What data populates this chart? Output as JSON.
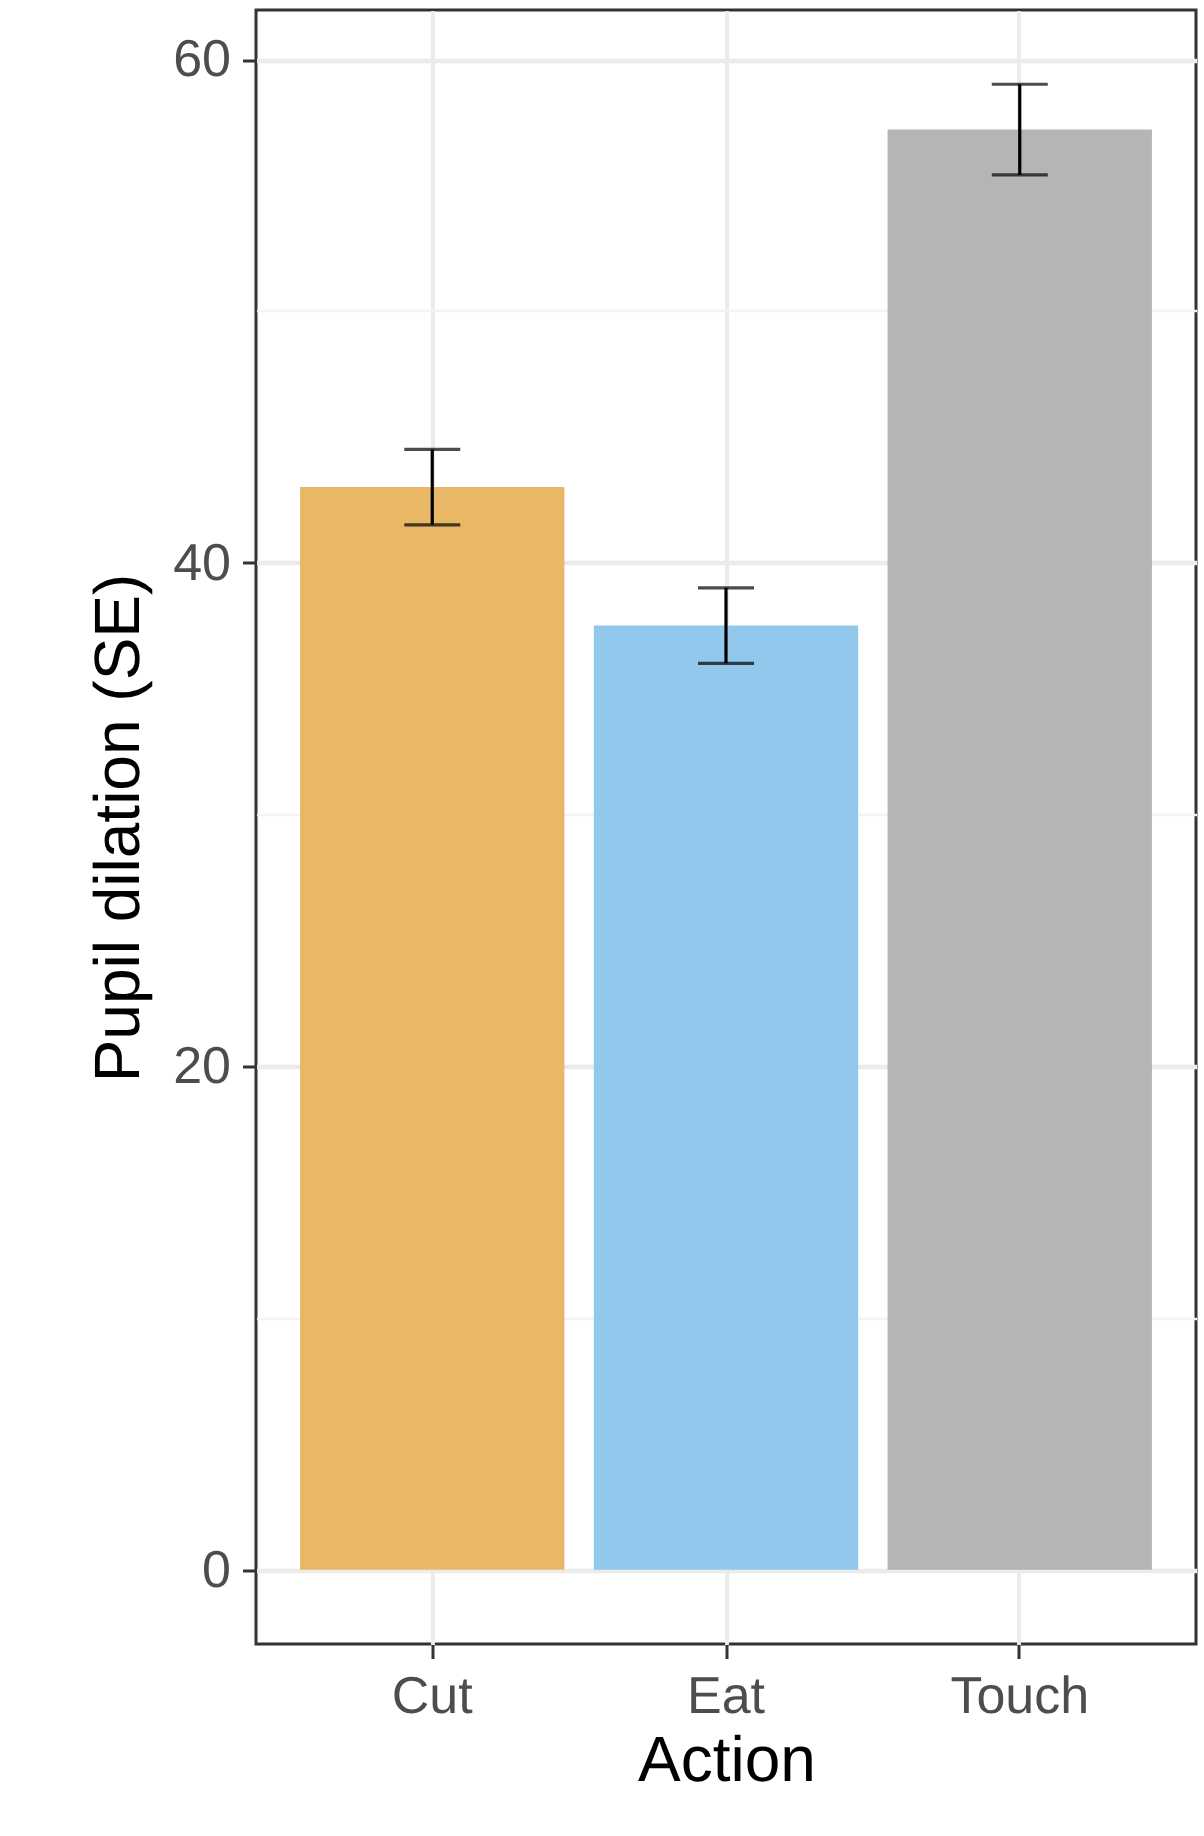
{
  "chart_data": {
    "type": "bar",
    "xlabel": "Action",
    "ylabel": "Pupil dilation (SE)",
    "categories": [
      "Cut",
      "Eat",
      "Touch"
    ],
    "values": [
      43,
      37.5,
      57.2
    ],
    "colors": [
      "#e8b866",
      "#92c8ec",
      "#b5b5b5"
    ],
    "errors": [
      1.5,
      1.5,
      1.8
    ],
    "ylim": [
      -2.95,
      61.95
    ],
    "yticks": [
      0,
      {
        "value": 10,
        "label": null
      },
      20,
      {
        "value": 30,
        "label": null
      },
      40,
      {
        "value": 50,
        "label": null
      },
      60
    ],
    "grid": true
  }
}
